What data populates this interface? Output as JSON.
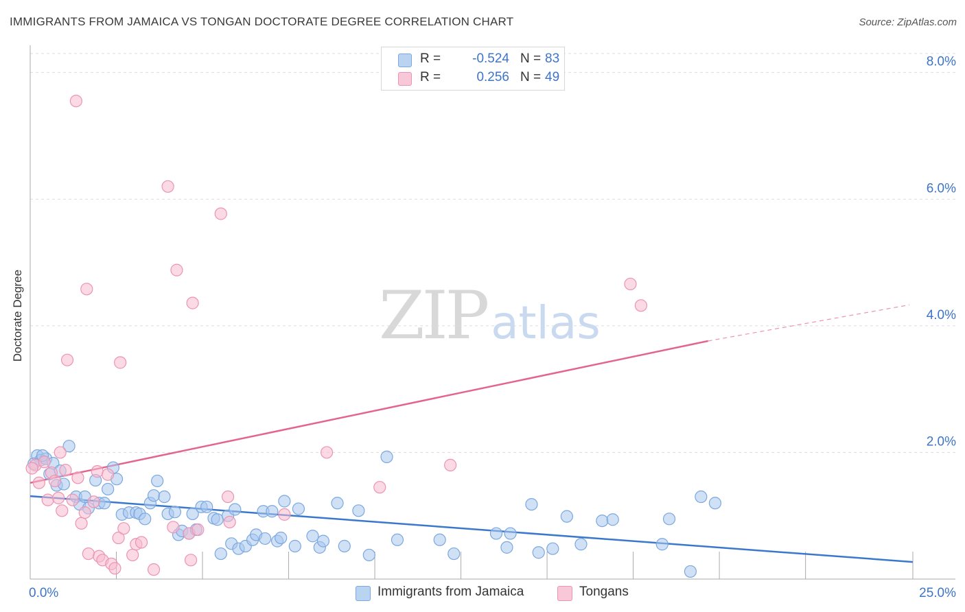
{
  "title": "IMMIGRANTS FROM JAMAICA VS TONGAN DOCTORATE DEGREE CORRELATION CHART",
  "source": "Source: ZipAtlas.com",
  "watermark": {
    "part1": "ZIP",
    "part2": "atlas"
  },
  "colors": {
    "blue_fill": "#a9c8ee",
    "blue_stroke": "#7aa7df",
    "blue_line": "#3a78cc",
    "pink_fill": "#f7bcd0",
    "pink_stroke": "#ec93b2",
    "pink_line": "#e3648e",
    "axis_text": "#3c74c8",
    "grid": "#dcdcdc"
  },
  "legend": {
    "rows": [
      {
        "r_label": "R =",
        "r_value": "-0.524",
        "n_label": "N =",
        "n_value": "83"
      },
      {
        "r_label": "R =",
        "r_value": "0.256",
        "n_label": "N =",
        "n_value": "49"
      }
    ]
  },
  "bottom_legend": {
    "jamaica": "Immigrants from Jamaica",
    "tongans": "Tongans"
  },
  "chart_data": {
    "type": "scatter",
    "title": "IMMIGRANTS FROM JAMAICA VS TONGAN DOCTORATE DEGREE CORRELATION CHART",
    "xlabel": "",
    "ylabel": "Doctorate Degree",
    "xlim": [
      0,
      25
    ],
    "ylim": [
      0,
      8.3
    ],
    "x_tick_labels": [
      {
        "value": 0,
        "label": "0.0%"
      },
      {
        "value": 25,
        "label": "25.0%"
      }
    ],
    "y_ticks": [
      {
        "value": 2,
        "label": "2.0%"
      },
      {
        "value": 4,
        "label": "4.0%"
      },
      {
        "value": 6,
        "label": "6.0%"
      },
      {
        "value": 8,
        "label": "8.0%"
      }
    ],
    "x_minor_ticks": [
      2.44,
      4.88,
      7.32,
      9.76,
      12.2,
      14.64,
      17.08,
      19.52,
      21.96
    ],
    "series": [
      {
        "name": "Immigrants from Jamaica",
        "color": "blue",
        "trend": {
          "x": [
            0,
            25
          ],
          "y": [
            1.31,
            0.27
          ],
          "dashed_from": 25
        },
        "points": [
          [
            0.2,
            1.95
          ],
          [
            0.3,
            1.88
          ],
          [
            0.45,
            1.9
          ],
          [
            0.55,
            1.66
          ],
          [
            0.65,
            1.83
          ],
          [
            0.75,
            1.48
          ],
          [
            0.85,
            1.71
          ],
          [
            0.95,
            1.5
          ],
          [
            1.1,
            2.1
          ],
          [
            1.3,
            1.3
          ],
          [
            1.4,
            1.18
          ],
          [
            1.55,
            1.3
          ],
          [
            1.65,
            1.12
          ],
          [
            1.85,
            1.56
          ],
          [
            1.95,
            1.2
          ],
          [
            2.1,
            1.2
          ],
          [
            2.2,
            1.42
          ],
          [
            2.35,
            1.76
          ],
          [
            2.45,
            1.58
          ],
          [
            2.6,
            1.02
          ],
          [
            2.8,
            1.05
          ],
          [
            3.0,
            1.05
          ],
          [
            3.1,
            1.03
          ],
          [
            3.25,
            0.95
          ],
          [
            3.4,
            1.2
          ],
          [
            3.5,
            1.32
          ],
          [
            3.6,
            1.55
          ],
          [
            3.8,
            1.3
          ],
          [
            3.9,
            1.03
          ],
          [
            4.1,
            1.06
          ],
          [
            4.2,
            0.7
          ],
          [
            4.3,
            0.76
          ],
          [
            4.5,
            0.72
          ],
          [
            4.6,
            1.03
          ],
          [
            4.7,
            0.78
          ],
          [
            4.85,
            1.14
          ],
          [
            5.0,
            1.14
          ],
          [
            5.2,
            0.96
          ],
          [
            5.3,
            0.94
          ],
          [
            5.4,
            0.4
          ],
          [
            5.6,
            1.0
          ],
          [
            5.7,
            0.56
          ],
          [
            5.8,
            1.1
          ],
          [
            5.9,
            0.48
          ],
          [
            6.1,
            0.52
          ],
          [
            6.3,
            0.62
          ],
          [
            6.4,
            0.7
          ],
          [
            6.6,
            1.07
          ],
          [
            6.65,
            0.64
          ],
          [
            6.85,
            1.07
          ],
          [
            7.0,
            0.6
          ],
          [
            7.1,
            0.65
          ],
          [
            7.2,
            1.23
          ],
          [
            7.5,
            0.52
          ],
          [
            7.6,
            1.11
          ],
          [
            8.0,
            0.68
          ],
          [
            8.2,
            0.5
          ],
          [
            8.3,
            0.6
          ],
          [
            8.7,
            1.2
          ],
          [
            8.9,
            0.52
          ],
          [
            9.3,
            1.08
          ],
          [
            9.6,
            0.38
          ],
          [
            10.1,
            1.93
          ],
          [
            10.4,
            0.62
          ],
          [
            11.6,
            0.62
          ],
          [
            12.0,
            0.4
          ],
          [
            13.2,
            0.72
          ],
          [
            13.5,
            0.5
          ],
          [
            13.6,
            0.72
          ],
          [
            14.2,
            1.18
          ],
          [
            14.4,
            0.42
          ],
          [
            14.8,
            0.48
          ],
          [
            15.2,
            0.99
          ],
          [
            15.6,
            0.55
          ],
          [
            16.2,
            0.92
          ],
          [
            16.5,
            0.94
          ],
          [
            17.9,
            0.55
          ],
          [
            18.1,
            0.95
          ],
          [
            18.7,
            0.12
          ],
          [
            19.0,
            1.3
          ],
          [
            19.4,
            1.2
          ],
          [
            0.1,
            1.82
          ],
          [
            0.35,
            1.95
          ]
        ]
      },
      {
        "name": "Tongans",
        "color": "pink",
        "trend": {
          "x": [
            0,
            19.2
          ],
          "y": [
            1.52,
            3.76
          ],
          "dashed_x": [
            19.2,
            24.9
          ],
          "dashed_y": [
            3.76,
            4.33
          ]
        },
        "points": [
          [
            0.15,
            1.8
          ],
          [
            0.25,
            1.52
          ],
          [
            0.4,
            1.85
          ],
          [
            0.5,
            1.25
          ],
          [
            0.6,
            1.68
          ],
          [
            0.7,
            1.55
          ],
          [
            0.8,
            1.28
          ],
          [
            0.85,
            2.0
          ],
          [
            0.9,
            1.08
          ],
          [
            1.0,
            1.72
          ],
          [
            1.05,
            3.46
          ],
          [
            1.2,
            1.25
          ],
          [
            1.3,
            7.55
          ],
          [
            1.35,
            1.6
          ],
          [
            1.45,
            0.88
          ],
          [
            1.55,
            1.05
          ],
          [
            1.6,
            4.58
          ],
          [
            1.65,
            0.4
          ],
          [
            1.8,
            1.22
          ],
          [
            1.9,
            1.7
          ],
          [
            1.95,
            0.36
          ],
          [
            2.05,
            0.3
          ],
          [
            2.2,
            1.65
          ],
          [
            2.3,
            0.24
          ],
          [
            2.4,
            0.17
          ],
          [
            2.5,
            0.65
          ],
          [
            2.55,
            3.42
          ],
          [
            2.65,
            0.8
          ],
          [
            2.9,
            0.38
          ],
          [
            3.0,
            0.55
          ],
          [
            3.15,
            0.58
          ],
          [
            3.5,
            0.15
          ],
          [
            3.9,
            6.2
          ],
          [
            4.05,
            0.82
          ],
          [
            4.15,
            4.88
          ],
          [
            4.5,
            0.72
          ],
          [
            4.55,
            0.3
          ],
          [
            4.6,
            4.36
          ],
          [
            4.75,
            0.78
          ],
          [
            5.4,
            5.77
          ],
          [
            5.6,
            1.3
          ],
          [
            5.65,
            0.9
          ],
          [
            7.2,
            1.02
          ],
          [
            8.4,
            2.0
          ],
          [
            9.9,
            1.45
          ],
          [
            11.9,
            1.8
          ],
          [
            17.0,
            4.66
          ],
          [
            17.3,
            4.32
          ],
          [
            0.05,
            1.75
          ]
        ]
      }
    ]
  }
}
